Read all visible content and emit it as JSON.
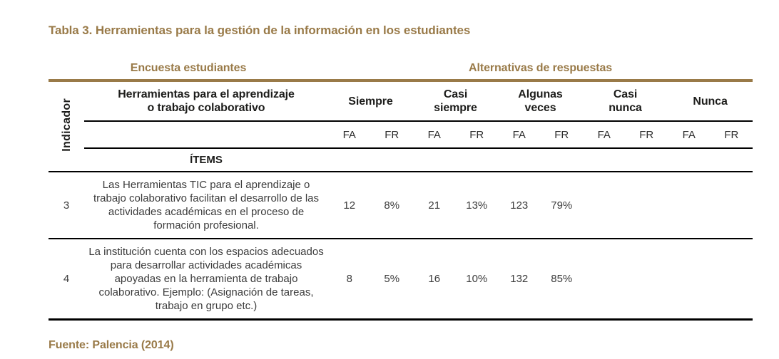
{
  "page": {
    "caption": "Tabla 3. Herramientas para la gestión de la información en los estudiantes",
    "source_note": "Fuente: Palencia (2014)"
  },
  "colors": {
    "accent_brown": "#997a48",
    "header_text": "#1d1d1b",
    "body_text": "#3c3c3c",
    "rule_black": "#000000"
  },
  "table": {
    "group_headers": {
      "survey": "Encuesta estudiantes",
      "alternatives": "Alternativas de respuestas"
    },
    "indicator_header": "Indicador",
    "question_header": "Herramientas para el aprendizaje o trabajo colaborativo",
    "items_header": "ÍTEMS",
    "alternatives": [
      "Siempre",
      "Casi siempre",
      "Algunas veces",
      "Casi nunca",
      "Nunca"
    ],
    "freq_headers": {
      "fa": "FA",
      "fr": "FR"
    },
    "rows": [
      {
        "indicator": "3",
        "item": "Las Herramientas TIC para el aprendizaje o trabajo colaborativo facilitan el desarrollo de las actividades académicas en el proceso de formación profesional.",
        "values": [
          "12",
          "8%",
          "21",
          "13%",
          "123",
          "79%",
          "",
          "",
          "",
          ""
        ]
      },
      {
        "indicator": "4",
        "item": "La institución cuenta con los espacios adecuados para desarrollar actividades académicas apoyadas en la herramienta de trabajo colaborativo. Ejemplo: (Asignación de tareas, trabajo en grupo etc.)",
        "values": [
          "8",
          "5%",
          "16",
          "10%",
          "132",
          "85%",
          "",
          "",
          "",
          ""
        ]
      }
    ]
  }
}
